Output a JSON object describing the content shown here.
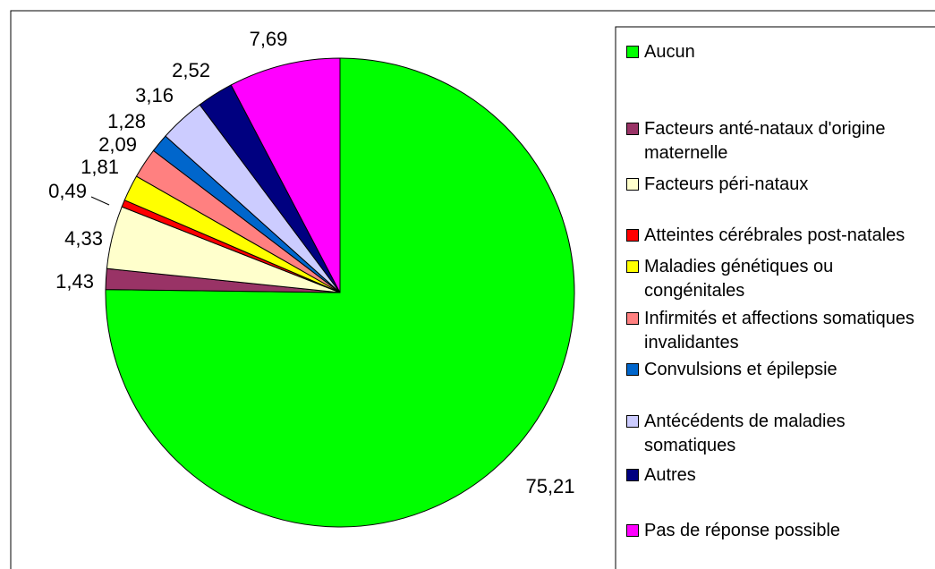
{
  "chart_data": {
    "type": "pie",
    "categories": [
      "Aucun",
      "Facteurs anté-nataux d'origine maternelle",
      "Facteurs péri-nataux",
      "Atteintes cérébrales post-natales",
      "Maladies génétiques ou congénitales",
      "Infirmités et affections somatiques invalidantes",
      "Convulsions et épilepsie",
      "Antécédents de maladies somatiques",
      "Autres",
      "Pas de réponse possible"
    ],
    "values": [
      75.21,
      1.43,
      4.33,
      0.49,
      1.81,
      2.09,
      1.28,
      3.16,
      2.52,
      7.69
    ],
    "value_labels": [
      "75,21",
      "1,43",
      "4,33",
      "0,49",
      "1,81",
      "2,09",
      "1,28",
      "3,16",
      "2,52",
      "7,69"
    ],
    "colors": [
      "#00ff00",
      "#993366",
      "#ffffcc",
      "#ff0000",
      "#ffff00",
      "#ff8080",
      "#0066cc",
      "#ccccff",
      "#000080",
      "#ff00ff"
    ],
    "legend": "right"
  }
}
